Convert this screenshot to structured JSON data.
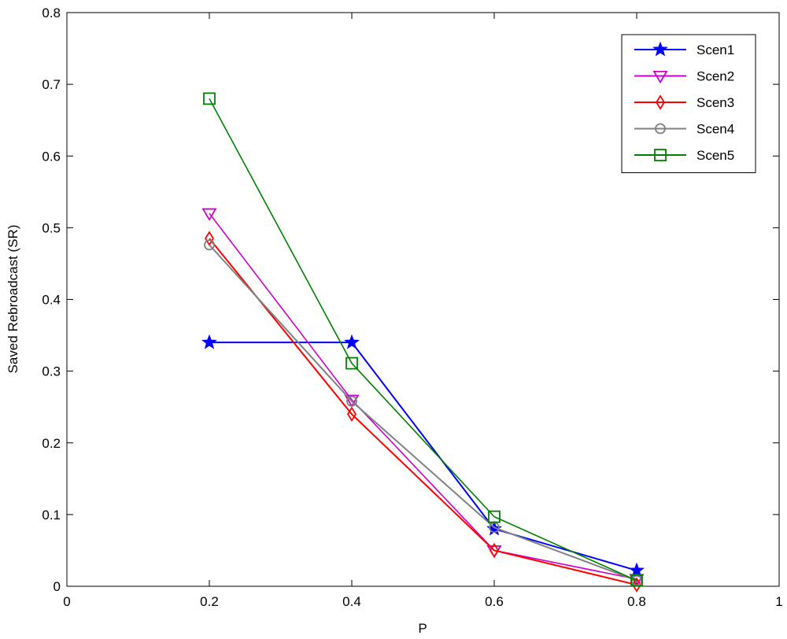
{
  "chart_data": {
    "type": "line",
    "title": "",
    "xlabel": "P",
    "ylabel": "Saved Rebroadcast (SR)",
    "xlim": [
      0,
      1
    ],
    "ylim": [
      0,
      0.8
    ],
    "xticks": [
      "0",
      "0.2",
      "0.4",
      "0.6",
      "0.8",
      "1"
    ],
    "yticks": [
      "0",
      "0.1",
      "0.2",
      "0.3",
      "0.4",
      "0.5",
      "0.6",
      "0.7",
      "0.8"
    ],
    "grid": false,
    "legend_position": "top-right",
    "x": [
      0.2,
      0.4,
      0.6,
      0.8
    ],
    "series": [
      {
        "name": "Scen1",
        "values": [
          0.34,
          0.34,
          0.08,
          0.022
        ],
        "color": "#0000ff",
        "marker": "star"
      },
      {
        "name": "Scen2",
        "values": [
          0.52,
          0.26,
          0.05,
          0.01
        ],
        "color": "#cc00cc",
        "marker": "triangle-down"
      },
      {
        "name": "Scen3",
        "values": [
          0.485,
          0.24,
          0.05,
          0.002
        ],
        "color": "#ff0000",
        "marker": "diamond"
      },
      {
        "name": "Scen4",
        "values": [
          0.476,
          0.258,
          0.082,
          0.008
        ],
        "color": "#808080",
        "marker": "circle"
      },
      {
        "name": "Scen5",
        "values": [
          0.68,
          0.311,
          0.097,
          0.008
        ],
        "color": "#008000",
        "marker": "square"
      }
    ]
  }
}
